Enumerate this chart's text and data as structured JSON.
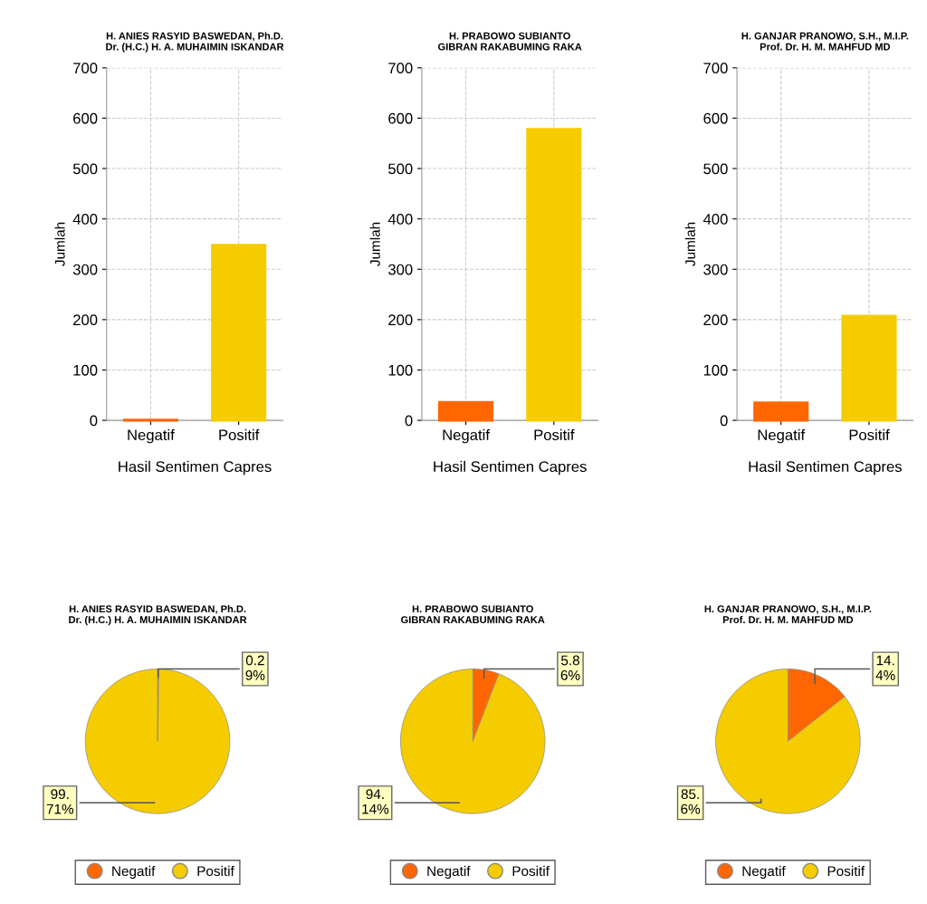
{
  "chart_data": [
    {
      "type": "bar",
      "title": "H. ANIES RASYID BASWEDAN, Ph.D.\nDr. (H.C.) H. A. MUHAIMIN ISKANDAR",
      "xlabel": "Hasil Sentimen Capres",
      "ylabel": "Jumlah",
      "categories": [
        "Negatif",
        "Positif"
      ],
      "values": [
        1,
        348
      ],
      "colors": [
        "#ff6600",
        "#f5cc00"
      ],
      "ylim": [
        0,
        700
      ],
      "yticks": [
        0,
        100,
        200,
        300,
        400,
        500,
        600,
        700
      ],
      "grid": true
    },
    {
      "type": "bar",
      "title": "H. PRABOWO SUBIANTO\nGIBRAN RAKABUMING RAKA",
      "xlabel": "Hasil Sentimen Capres",
      "ylabel": "Jumlah",
      "categories": [
        "Negatif",
        "Positif"
      ],
      "values": [
        36,
        578
      ],
      "colors": [
        "#ff6600",
        "#f5cc00"
      ],
      "ylim": [
        0,
        700
      ],
      "yticks": [
        0,
        100,
        200,
        300,
        400,
        500,
        600,
        700
      ],
      "grid": true
    },
    {
      "type": "bar",
      "title": "H. GANJAR PRANOWO, S.H., M.I.P.\nProf. Dr. H. M. MAHFUD MD",
      "xlabel": "Hasil Sentimen Capres",
      "ylabel": "Jumlah",
      "categories": [
        "Negatif",
        "Positif"
      ],
      "values": [
        35,
        207
      ],
      "colors": [
        "#ff6600",
        "#f5cc00"
      ],
      "ylim": [
        0,
        700
      ],
      "yticks": [
        0,
        100,
        200,
        300,
        400,
        500,
        600,
        700
      ],
      "grid": true
    },
    {
      "type": "pie",
      "title": "H. ANIES RASYID BASWEDAN, Ph.D.\nDr. (H.C.) H. A. MUHAIMIN ISKANDAR",
      "categories": [
        "Negatif",
        "Positif"
      ],
      "values": [
        0.29,
        99.71
      ],
      "value_labels": [
        "0.29%",
        "99.71%"
      ],
      "colors": [
        "#ff6600",
        "#f5cc00"
      ],
      "legend": "bottom"
    },
    {
      "type": "pie",
      "title": "H. PRABOWO SUBIANTO\nGIBRAN RAKABUMING RAKA",
      "categories": [
        "Negatif",
        "Positif"
      ],
      "values": [
        5.86,
        94.14
      ],
      "value_labels": [
        "5.86%",
        "94.14%"
      ],
      "colors": [
        "#ff6600",
        "#f5cc00"
      ],
      "legend": "bottom"
    },
    {
      "type": "pie",
      "title": "H. GANJAR PRANOWO, S.H., M.I.P.\nProf. Dr. H. M. MAHFUD MD",
      "categories": [
        "Negatif",
        "Positif"
      ],
      "values": [
        14.4,
        85.6
      ],
      "value_labels": [
        "14.4%",
        "85.6%"
      ],
      "colors": [
        "#ff6600",
        "#f5cc00"
      ],
      "legend": "bottom"
    }
  ]
}
